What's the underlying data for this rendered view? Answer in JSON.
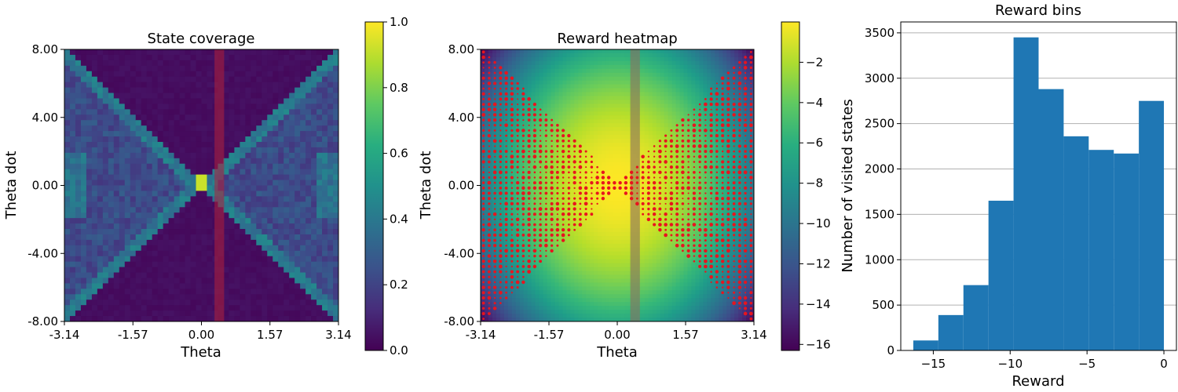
{
  "chart_data": [
    {
      "type": "heatmap",
      "title": "State coverage",
      "xlabel": "Theta",
      "ylabel": "Theta dot",
      "xlim": [
        -3.14,
        3.14
      ],
      "ylim": [
        -8.0,
        8.0
      ],
      "xticks": [
        "-3.14",
        "-1.57",
        "0.00",
        "1.57",
        "3.14"
      ],
      "yticks": [
        "-8.00",
        "-4.00",
        "0.00",
        "4.00",
        "8.00"
      ],
      "colormap": "viridis",
      "colorbar": {
        "min": 0.0,
        "max": 1.0,
        "ticks": [
          "0.0",
          "0.2",
          "0.4",
          "0.6",
          "0.8",
          "1.0"
        ]
      },
      "highlight_band": {
        "theta_min": 0.3,
        "theta_max": 0.52,
        "color": "#b0203a"
      },
      "hotspot": {
        "theta": 0.0,
        "theta_dot": 0.2,
        "value": 1.0
      }
    },
    {
      "type": "heatmap",
      "title": "Reward heatmap",
      "xlabel": "Theta",
      "ylabel": "Theta dot",
      "xlim": [
        -3.14,
        3.14
      ],
      "ylim": [
        -8.0,
        8.0
      ],
      "xticks": [
        "-3.14",
        "-1.57",
        "0.00",
        "1.57",
        "3.14"
      ],
      "yticks": [
        "-8.00",
        "-4.00",
        "0.00",
        "4.00",
        "8.00"
      ],
      "colormap": "viridis",
      "colorbar": {
        "min": -16.3,
        "max": 0.0,
        "ticks": [
          "-2",
          "-4",
          "-6",
          "-8",
          "-10",
          "-12",
          "-14",
          "-16"
        ]
      },
      "highlight_band": {
        "theta_min": 0.3,
        "theta_max": 0.52,
        "color": "#8a7060"
      },
      "marker_color": "#e8141e"
    },
    {
      "type": "bar",
      "title": "Reward bins",
      "xlabel": "Reward",
      "ylabel": "Number of visited states",
      "bin_edges": [
        -16.3,
        -14.67,
        -13.04,
        -11.41,
        -9.78,
        -8.15,
        -6.52,
        -4.89,
        -3.26,
        -1.63,
        0.0
      ],
      "values": [
        110,
        390,
        720,
        1650,
        3450,
        2880,
        2360,
        2210,
        2170,
        2750
      ],
      "xlim": [
        -16.3,
        0.0
      ],
      "ylim": [
        0,
        3620
      ],
      "xticks": [
        -15,
        -10,
        -5,
        0
      ],
      "xtick_labels": [
        "−15",
        "−10",
        "−5",
        "0"
      ],
      "yticks": [
        0,
        500,
        1000,
        1500,
        2000,
        2500,
        3000,
        3500
      ],
      "ytick_labels": [
        "0",
        "500",
        "1000",
        "1500",
        "2000",
        "2500",
        "3000",
        "3500"
      ],
      "grid": "y",
      "bar_color": "#1f77b4"
    }
  ]
}
